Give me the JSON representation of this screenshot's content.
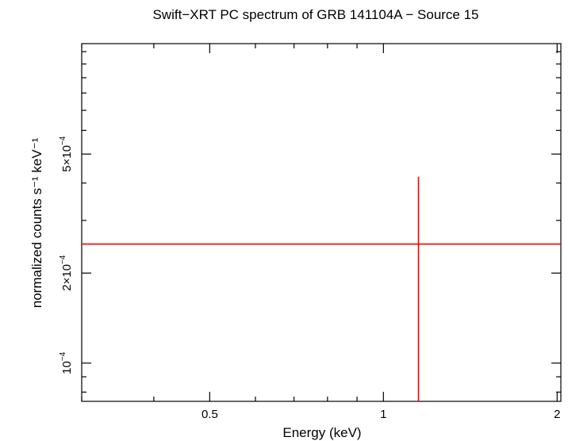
{
  "chart_data": {
    "type": "scatter",
    "title": "Swift−XRT PC spectrum of GRB 141104A − Source 15",
    "xlabel": "Energy (keV)",
    "ylabel": "normalized counts s⁻¹ keV⁻¹",
    "x_scale": "log",
    "y_scale": "log",
    "xlim": [
      0.3,
      2.03
    ],
    "ylim": [
      7.45e-05,
      0.00117
    ],
    "x_ticks": [
      {
        "value": 0.5,
        "label": "0.5"
      },
      {
        "value": 1,
        "label": "1"
      },
      {
        "value": 2,
        "label": "2"
      }
    ],
    "y_ticks": [
      {
        "value": 0.0001,
        "mantissa": "",
        "exponent": "−4",
        "base": "10"
      },
      {
        "value": 0.0002,
        "mantissa": "2×",
        "exponent": "−4",
        "base": "10"
      },
      {
        "value": 0.0005,
        "mantissa": "5×",
        "exponent": "−4",
        "base": "10"
      }
    ],
    "series": [
      {
        "color": "#ff0000",
        "points": [
          {
            "x": 1.15,
            "xerr_low": 0.3,
            "xerr_high": 2.03,
            "y": 0.00025,
            "yerr_low": 7.45e-05,
            "yerr_high": 0.00042
          }
        ]
      }
    ],
    "grid": false
  }
}
